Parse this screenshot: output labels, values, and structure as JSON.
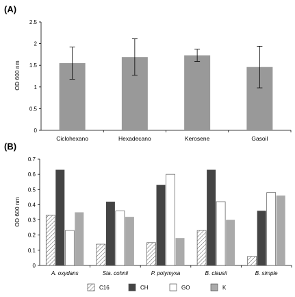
{
  "chart_data": [
    {
      "panel": "(A)",
      "type": "bar",
      "ylabel": "OD 600 nm",
      "ylim": [
        0,
        2.5
      ],
      "yticks": [
        "0",
        "0.5",
        "1",
        "1.5",
        "2",
        "2.5"
      ],
      "categories": [
        "Ciclohexano",
        "Hexadecano",
        "Kerosene",
        "Gasoil"
      ],
      "values": [
        1.55,
        1.69,
        1.73,
        1.46
      ],
      "errors": [
        0.37,
        0.42,
        0.14,
        0.48
      ],
      "bar_color": "#999999"
    },
    {
      "panel": "(B)",
      "type": "bar",
      "ylabel": "OD 600 nm",
      "ylim": [
        0,
        0.7
      ],
      "yticks": [
        "0",
        "0.1",
        "0.2",
        "0.3",
        "0.4",
        "0.5",
        "0.6",
        "0.7"
      ],
      "categories": [
        "A. oxydans",
        "Sta. cohnii",
        "P. polymyxa",
        "B. clausii",
        "B. simple"
      ],
      "series": [
        {
          "name": "C16",
          "values": [
            0.33,
            0.14,
            0.15,
            0.23,
            0.06
          ],
          "fill": "hatch"
        },
        {
          "name": "CH",
          "values": [
            0.63,
            0.42,
            0.53,
            0.63,
            0.36
          ],
          "fill": "#444444"
        },
        {
          "name": "GO",
          "values": [
            0.23,
            0.36,
            0.6,
            0.42,
            0.48
          ],
          "fill": "#ffffff"
        },
        {
          "name": "K",
          "values": [
            0.35,
            0.32,
            0.18,
            0.3,
            0.46
          ],
          "fill": "#aaaaaa"
        }
      ],
      "legend_position": "bottom"
    }
  ]
}
